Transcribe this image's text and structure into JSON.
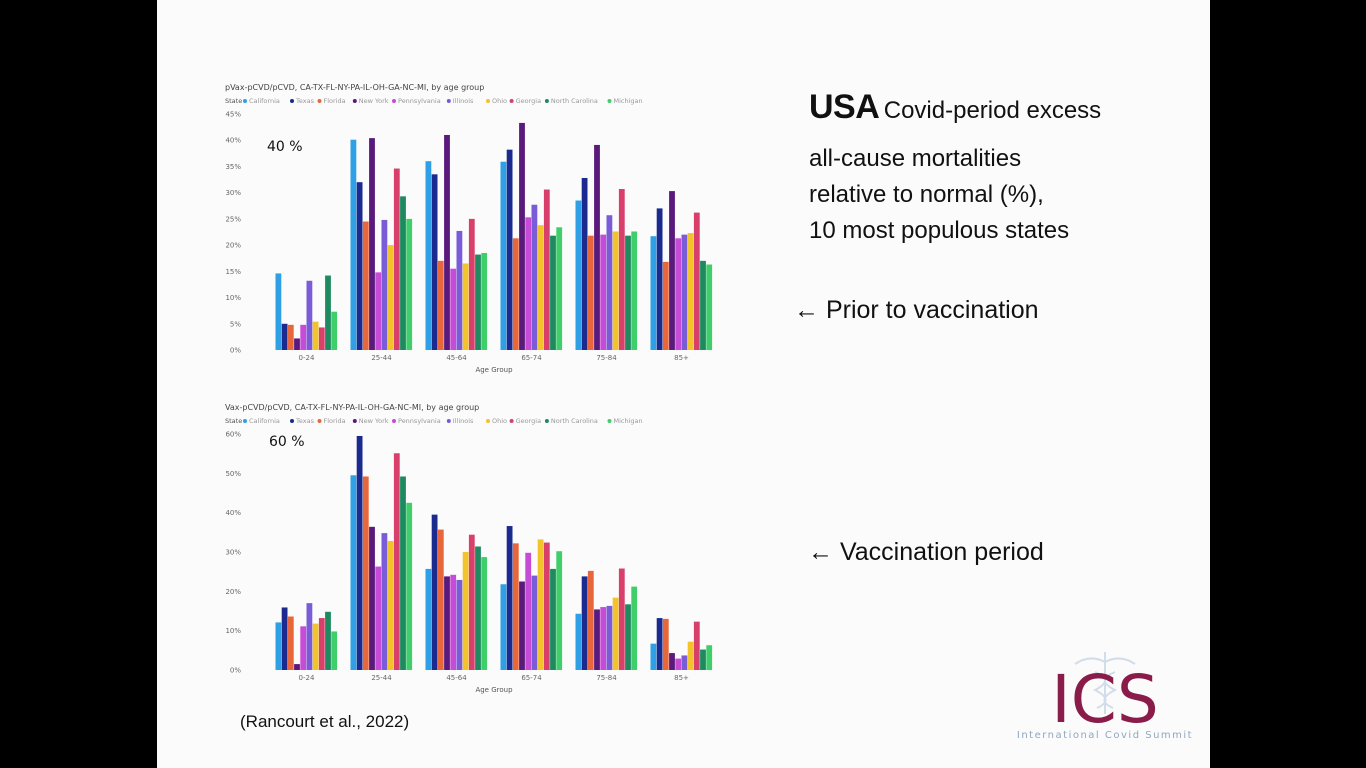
{
  "slide": {
    "heading_bold": "USA",
    "heading_rest": "Covid-period excess",
    "lines": [
      "all-cause mortalities",
      "relative to normal (%),",
      "10 most populous states"
    ],
    "prior_label": "← Prior to vaccination",
    "vacc_label": "← Vaccination period",
    "citation": "(Rancourt et al., 2022)",
    "logo_text": "ICS",
    "logo_subtitle": "International Covid Summit",
    "logo_color": "#8a1c4a"
  },
  "legend_title": "State",
  "state_colors": [
    "#2f9fe6",
    "#1b2a8f",
    "#e8673a",
    "#5a1a7c",
    "#c64bd6",
    "#7a5bd8",
    "#f3c32b",
    "#d83f6a",
    "#1f8a5f",
    "#3fcf6a"
  ],
  "chart_data": [
    {
      "type": "bar",
      "title": "pVax-pCVD/pCVD, CA-TX-FL-NY-PA-IL-OH-GA-NC-MI, by age group",
      "annotation": "40 %",
      "xlabel": "Age Group",
      "ylabel": "",
      "ylim": [
        0,
        45
      ],
      "yticks": [
        0,
        5,
        10,
        15,
        20,
        25,
        30,
        35,
        40,
        45
      ],
      "ytick_labels": [
        "0%",
        "5%",
        "10%",
        "15%",
        "20%",
        "25%",
        "30%",
        "35%",
        "40%",
        "45%"
      ],
      "categories": [
        "0-24",
        "25-44",
        "45-64",
        "65-74",
        "75-84",
        "85+"
      ],
      "series": [
        {
          "name": "California",
          "values": [
            14.6,
            40.1,
            36.0,
            35.9,
            28.5,
            21.7
          ]
        },
        {
          "name": "Texas",
          "values": [
            5.0,
            32.0,
            33.5,
            38.2,
            32.8,
            27.0
          ]
        },
        {
          "name": "Florida",
          "values": [
            4.8,
            24.5,
            17.0,
            21.3,
            21.8,
            16.8
          ]
        },
        {
          "name": "New York",
          "values": [
            2.2,
            40.4,
            41.0,
            43.3,
            39.1,
            30.3
          ]
        },
        {
          "name": "Pennsylvania",
          "values": [
            4.8,
            14.8,
            15.5,
            25.3,
            22.0,
            21.3
          ]
        },
        {
          "name": "Illinois",
          "values": [
            13.2,
            24.8,
            22.7,
            27.7,
            25.7,
            22.0
          ]
        },
        {
          "name": "Ohio",
          "values": [
            5.4,
            20.0,
            16.5,
            23.8,
            22.6,
            22.3
          ]
        },
        {
          "name": "Georgia",
          "values": [
            4.3,
            34.6,
            25.0,
            30.6,
            30.7,
            26.2
          ]
        },
        {
          "name": "North Carolina",
          "values": [
            14.2,
            29.3,
            18.2,
            21.8,
            21.8,
            17.0
          ]
        },
        {
          "name": "Michigan",
          "values": [
            7.3,
            25.0,
            18.5,
            23.4,
            22.6,
            16.3
          ]
        }
      ]
    },
    {
      "type": "bar",
      "title": "Vax-pCVD/pCVD, CA-TX-FL-NY-PA-IL-OH-GA-NC-MI, by age group",
      "annotation": "60 %",
      "xlabel": "Age Group",
      "ylabel": "",
      "ylim": [
        0,
        60
      ],
      "yticks": [
        0,
        10,
        20,
        30,
        40,
        50,
        60
      ],
      "ytick_labels": [
        "0%",
        "10%",
        "20%",
        "30%",
        "40%",
        "50%",
        "60%"
      ],
      "categories": [
        "0-24",
        "25-44",
        "45-64",
        "65-74",
        "75-84",
        "85+"
      ],
      "series": [
        {
          "name": "California",
          "values": [
            12.1,
            49.5,
            25.7,
            21.8,
            14.3,
            6.7
          ]
        },
        {
          "name": "Texas",
          "values": [
            15.9,
            59.5,
            39.5,
            36.6,
            23.8,
            13.2
          ]
        },
        {
          "name": "Florida",
          "values": [
            13.6,
            49.2,
            35.7,
            32.2,
            25.2,
            13.0
          ]
        },
        {
          "name": "New York",
          "values": [
            1.5,
            36.4,
            23.8,
            22.5,
            15.4,
            4.3
          ]
        },
        {
          "name": "Pennsylvania",
          "values": [
            11.1,
            26.3,
            24.2,
            29.8,
            16.0,
            2.9
          ]
        },
        {
          "name": "Illinois",
          "values": [
            17.0,
            34.8,
            22.9,
            24.0,
            16.3,
            3.7
          ]
        },
        {
          "name": "Ohio",
          "values": [
            11.8,
            32.8,
            30.0,
            33.2,
            18.4,
            7.2
          ]
        },
        {
          "name": "Georgia",
          "values": [
            13.2,
            55.1,
            34.4,
            32.4,
            25.8,
            12.3
          ]
        },
        {
          "name": "North Carolina",
          "values": [
            14.8,
            49.2,
            31.4,
            25.7,
            16.7,
            5.2
          ]
        },
        {
          "name": "Michigan",
          "values": [
            9.8,
            42.5,
            28.7,
            30.2,
            21.2,
            6.3
          ]
        }
      ]
    }
  ]
}
